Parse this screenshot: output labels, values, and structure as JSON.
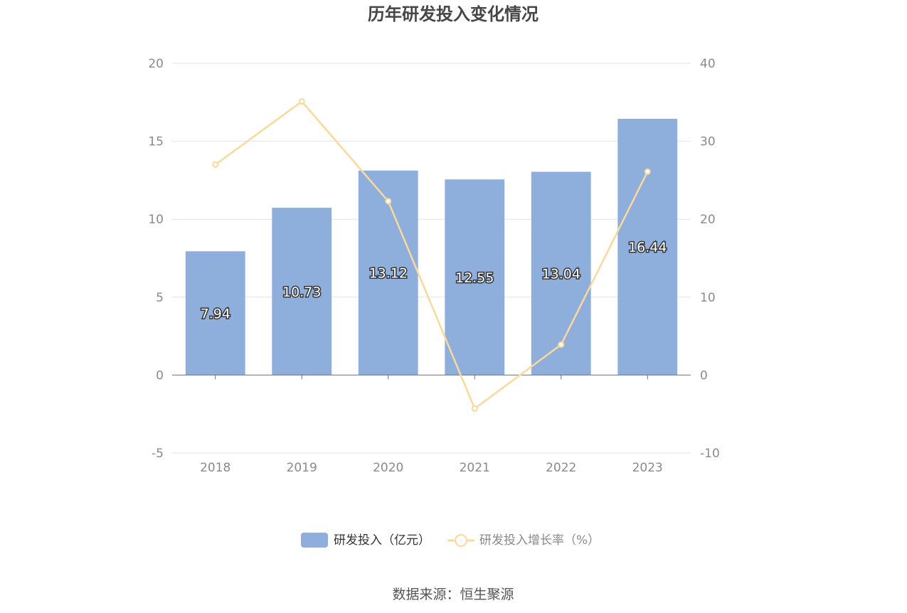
{
  "chart_data": {
    "type": "bar",
    "title": "历年研发投入变化情况",
    "categories": [
      "2018",
      "2019",
      "2020",
      "2021",
      "2022",
      "2023"
    ],
    "series": [
      {
        "name": "研发投入（亿元）",
        "type": "bar",
        "axis": "left",
        "values": [
          7.94,
          10.73,
          13.12,
          12.55,
          13.04,
          16.44
        ],
        "labels": [
          "7.94",
          "10.73",
          "13.12",
          "12.55",
          "13.04",
          "16.44"
        ],
        "color": "#8eaedb"
      },
      {
        "name": "研发投入增长率（%）",
        "type": "line",
        "axis": "right",
        "values": [
          27.0,
          35.1,
          22.3,
          -4.3,
          3.9,
          26.1
        ],
        "color": "#fbd89b"
      }
    ],
    "y_left": {
      "min": -5,
      "max": 20,
      "ticks": [
        "-5",
        "0",
        "5",
        "10",
        "15",
        "20"
      ]
    },
    "y_right": {
      "min": -10,
      "max": 40,
      "ticks": [
        "-10",
        "0",
        "10",
        "20",
        "30",
        "40"
      ]
    },
    "grid": true,
    "legend_position": "bottom"
  },
  "source_text": "数据来源：恒生聚源",
  "colors": {
    "bar": "#8eaedb",
    "line": "#fbd89b",
    "grid": "#e0e3ef",
    "axis": "#6e7079"
  }
}
